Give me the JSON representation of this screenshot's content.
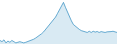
{
  "chart_data": {
    "type": "line",
    "values": [
      80,
      70,
      85,
      60,
      75,
      65,
      80,
      70,
      60,
      65,
      70,
      65,
      60,
      65,
      70,
      75,
      80,
      90,
      100,
      110,
      120,
      135,
      150,
      170,
      190,
      210,
      230,
      250,
      270,
      300,
      330,
      360,
      390,
      350,
      310,
      270,
      240,
      210,
      195,
      180,
      170,
      160,
      155,
      150,
      145,
      155,
      145,
      155,
      148,
      153,
      145,
      152,
      148,
      145,
      150,
      148,
      152,
      155,
      148,
      145
    ],
    "color": "#2b8abf",
    "xlim": [
      0,
      59
    ],
    "ylim": [
      51,
      409.5
    ],
    "grid": false,
    "tick_labels": false
  }
}
